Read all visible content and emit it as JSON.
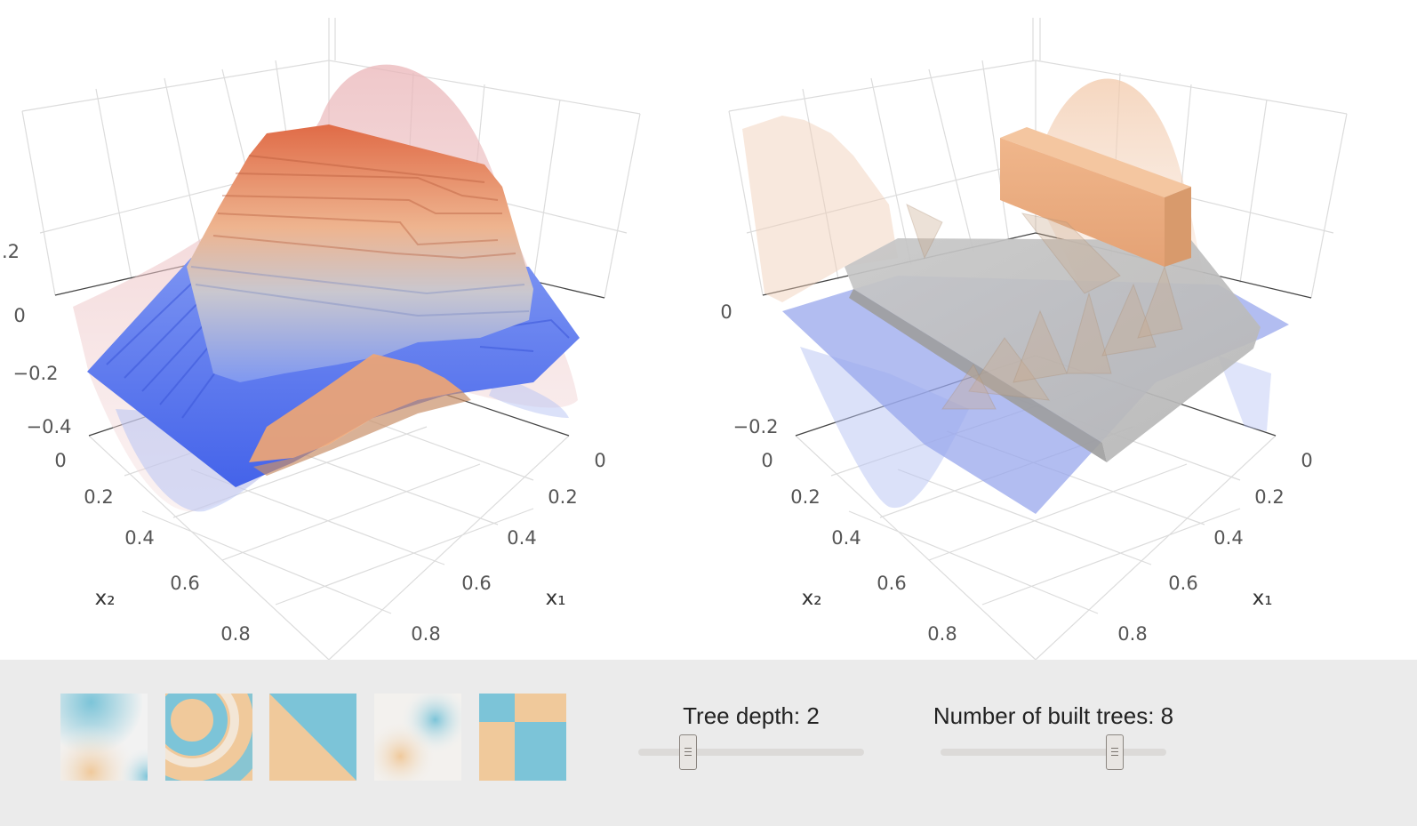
{
  "chart_data": [
    {
      "type": "surface3d",
      "title": "",
      "xlabel": "x₁",
      "ylabel": "x₂",
      "zlabel": "",
      "x_ticks": [
        "0",
        "0.2",
        "0.4",
        "0.6",
        "0.8"
      ],
      "y_ticks": [
        "0",
        "0.2",
        "0.4",
        "0.6",
        "0.8"
      ],
      "z_ticks": [
        ".2",
        "0",
        "−0.2",
        "−0.4"
      ],
      "colorscale": [
        "#4a6ff0",
        "#d9d9d9",
        "#e0704a"
      ],
      "series": [
        {
          "role": "stepped prediction surface (tree ensemble)"
        },
        {
          "role": "target function (transparent)"
        }
      ]
    },
    {
      "type": "surface3d",
      "title": "",
      "xlabel": "x₁",
      "ylabel": "x₂",
      "zlabel": "",
      "x_ticks": [
        "0",
        "0.2",
        "0.4",
        "0.6",
        "0.8"
      ],
      "y_ticks": [
        "0",
        "0.2",
        "0.4",
        "0.6",
        "0.8"
      ],
      "z_ticks": [
        "0",
        "−0.2"
      ],
      "colorscale": [
        "#5b7df0",
        "#c8c8c8",
        "#e8a070"
      ],
      "series": [
        {
          "role": "single tree residual fit"
        },
        {
          "role": "residual surface (transparent)"
        }
      ]
    }
  ],
  "dataset_thumbnails": [
    {
      "name": "product-pattern",
      "colors": [
        "#7cc4d8",
        "#f0c99b"
      ]
    },
    {
      "name": "rings-pattern",
      "colors": [
        "#7cc4d8",
        "#f0c99b"
      ]
    },
    {
      "name": "diagonal-split",
      "colors": [
        "#7cc4d8",
        "#f0c99b"
      ]
    },
    {
      "name": "gaussian-blobs",
      "colors": [
        "#7cc4d8",
        "#f0c99b"
      ]
    },
    {
      "name": "checkerboard",
      "colors": [
        "#7cc4d8",
        "#f0c99b"
      ]
    }
  ],
  "controls": {
    "depth": {
      "label": "Tree depth: 2",
      "value": 2,
      "min": 1,
      "max": 8
    },
    "trees": {
      "label": "Number of built trees: 8",
      "value": 8,
      "min": 1,
      "max": 10
    }
  }
}
